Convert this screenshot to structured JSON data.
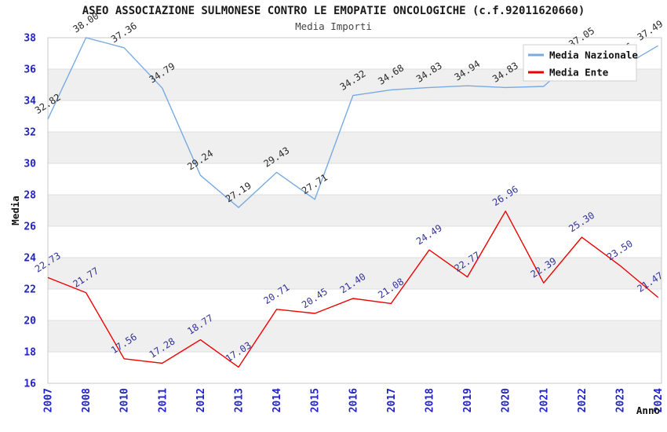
{
  "header": {
    "title": "ASEO ASSOCIAZIONE SULMONESE CONTRO LE EMOPATIE ONCOLOGICHE (c.f.92011620660)",
    "subtitle": "Media Importi"
  },
  "legend": {
    "items": [
      {
        "label": "Media Nazionale",
        "color": "#78ABE2"
      },
      {
        "label": "Media Ente",
        "color": "#EE0000"
      }
    ]
  },
  "colors": {
    "tick_label": "#2222CC",
    "band_alt": "#EFEFEF",
    "grid": "#DCDCDC",
    "plot_border": "#C8C8C8",
    "axis_title": "#111111",
    "legend_text": "#111111",
    "legend_border": "#CFCFCF"
  },
  "chart_data": {
    "type": "line",
    "title": "ASEO ASSOCIAZIONE SULMONESE CONTRO LE EMOPATIE ONCOLOGICHE (c.f.92011620660)",
    "subtitle": "Media Importi",
    "xlabel": "Anno",
    "ylabel": "Media",
    "ylim": [
      16,
      38
    ],
    "y_ticks": [
      38,
      36,
      34,
      32,
      30,
      28,
      26,
      24,
      22,
      20,
      18,
      16
    ],
    "categories": [
      "2007",
      "2008",
      "2010",
      "2011",
      "2012",
      "2013",
      "2014",
      "2015",
      "2016",
      "2017",
      "2018",
      "2019",
      "2020",
      "2021",
      "2022",
      "2023",
      "2024"
    ],
    "grid": true,
    "band_fill_alternating": true,
    "legend_position": "top-right",
    "series": [
      {
        "name": "Media Nazionale",
        "color": "#78ABE2",
        "label_color": "#2A2A2A",
        "values": [
          32.82,
          38.0,
          37.36,
          34.79,
          29.24,
          27.19,
          29.43,
          27.71,
          34.32,
          34.68,
          34.83,
          34.94,
          34.83,
          34.9,
          37.05,
          36.06,
          37.49
        ],
        "labels": [
          "32.82",
          "38.00",
          "37.36",
          "34.79",
          "29.24",
          "27.19",
          "29.43",
          "27.71",
          "34.32",
          "34.68",
          "34.83",
          "34.94",
          "34.83",
          "34.90",
          "37.05",
          "36.06",
          "37.49"
        ],
        "labels_occluded_by_legend": [
          13,
          15
        ]
      },
      {
        "name": "Media Ente",
        "color": "#EE0000",
        "label_color": "#333399",
        "values": [
          22.73,
          21.77,
          17.56,
          17.28,
          18.77,
          17.03,
          20.71,
          20.45,
          21.4,
          21.08,
          24.49,
          22.77,
          26.96,
          22.39,
          25.3,
          23.5,
          21.47
        ],
        "labels": [
          "22.73",
          "21.77",
          "17.56",
          "17.28",
          "18.77",
          "17.03",
          "20.71",
          "20.45",
          "21.40",
          "21.08",
          "24.49",
          "22.77",
          "26.96",
          "22.39",
          "25.30",
          "23.50",
          "21.47"
        ]
      }
    ]
  }
}
